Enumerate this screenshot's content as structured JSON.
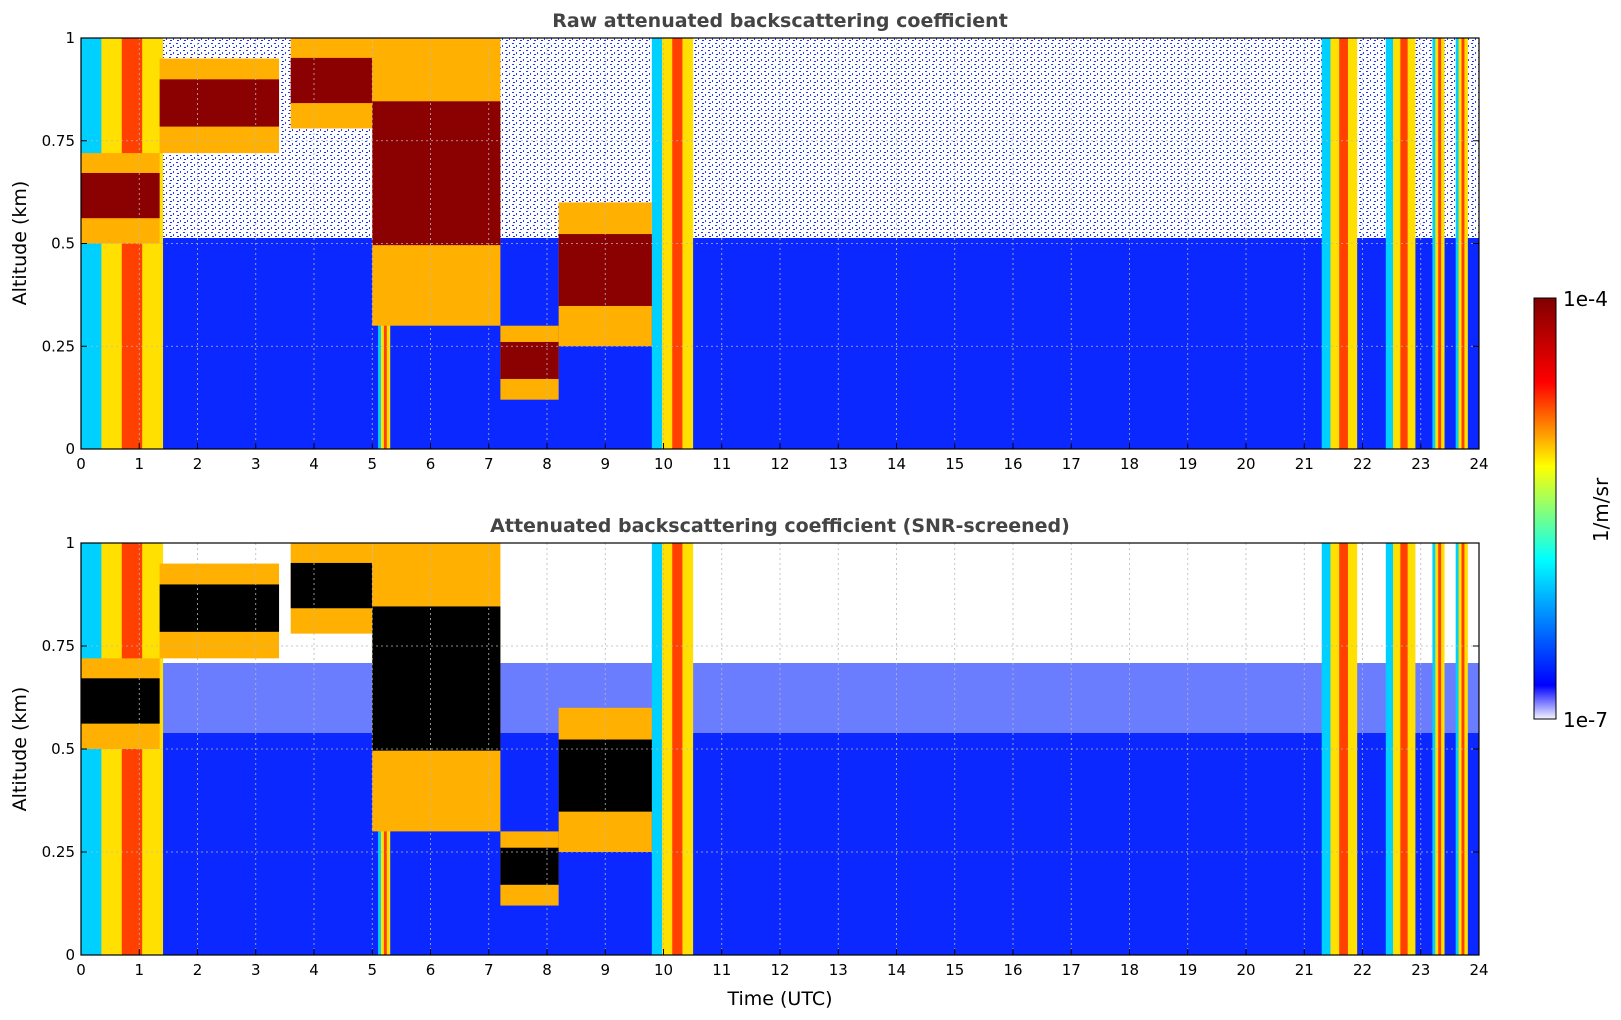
{
  "figure": {
    "xlabel": "Time (UTC)"
  },
  "chart_data": [
    {
      "type": "heatmap",
      "title": "Raw attenuated backscattering coefficient",
      "xlabel": "",
      "ylabel": "Altitude (km)",
      "xlim": [
        0,
        24
      ],
      "ylim": [
        0,
        1
      ],
      "x_ticks": [
        "0",
        "1",
        "2",
        "3",
        "4",
        "5",
        "6",
        "7",
        "8",
        "9",
        "10",
        "11",
        "12",
        "13",
        "14",
        "15",
        "16",
        "17",
        "18",
        "19",
        "20",
        "21",
        "22",
        "23",
        "24"
      ],
      "y_ticks": [
        "0",
        "0.25",
        "0.5",
        "0.75",
        "1"
      ],
      "grid": true,
      "color_scale": "log",
      "value_range": [
        1e-07,
        0.0001
      ],
      "screened": false
    },
    {
      "type": "heatmap",
      "title": "Attenuated backscattering coefficient (SNR-screened)",
      "xlabel": "Time (UTC)",
      "ylabel": "Altitude (km)",
      "xlim": [
        0,
        24
      ],
      "ylim": [
        0,
        1
      ],
      "x_ticks": [
        "0",
        "1",
        "2",
        "3",
        "4",
        "5",
        "6",
        "7",
        "8",
        "9",
        "10",
        "11",
        "12",
        "13",
        "14",
        "15",
        "16",
        "17",
        "18",
        "19",
        "20",
        "21",
        "22",
        "23",
        "24"
      ],
      "y_ticks": [
        "0",
        "0.25",
        "0.5",
        "0.75",
        "1"
      ],
      "grid": true,
      "color_scale": "log",
      "value_range": [
        1e-07,
        0.0001
      ],
      "screened": true
    }
  ],
  "colorbar": {
    "label": "1/m/sr",
    "max_label": "1e-4",
    "min_label": "1e-7",
    "colormap": "jet",
    "colors": [
      "#f4f4ff",
      "#0000ff",
      "#00ffff",
      "#ffff00",
      "#ff0000",
      "#800000"
    ]
  },
  "features": {
    "cloud_layers": [
      {
        "t": [
          0.0,
          1.35
        ],
        "base_km": 0.5,
        "top_km": 0.72
      },
      {
        "t": [
          1.35,
          3.4
        ],
        "base_km": 0.72,
        "top_km": 0.95
      },
      {
        "t": [
          3.6,
          5.0
        ],
        "base_km": 0.78,
        "top_km": 1.0
      },
      {
        "t": [
          5.0,
          7.2
        ],
        "base_km": 0.3,
        "top_km": 1.0
      },
      {
        "t": [
          7.2,
          8.2
        ],
        "base_km": 0.12,
        "top_km": 0.3
      },
      {
        "t": [
          8.2,
          9.8
        ],
        "base_km": 0.25,
        "top_km": 0.6
      }
    ],
    "precipitation_columns_utc": [
      [
        0.0,
        1.4
      ],
      [
        5.1,
        5.3
      ],
      [
        9.8,
        10.5
      ],
      [
        21.3,
        21.9
      ],
      [
        22.4,
        22.9
      ],
      [
        23.2,
        23.4
      ],
      [
        23.6,
        23.8
      ]
    ]
  }
}
